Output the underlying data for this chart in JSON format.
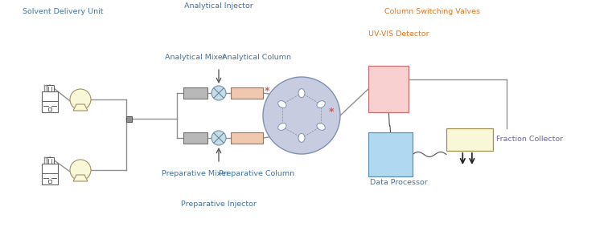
{
  "bg_color": "#ffffff",
  "tc_blue": "#4472a0",
  "tc_orange": "#e07828",
  "tc_purple": "#7060b0",
  "lc": "#909090",
  "lw": 1.0,
  "yellow_fill": "#f8f8d8",
  "pink_fill": "#f8d0d0",
  "blue_fill": "#b0d8f0",
  "gray_fill": "#b8b8b8",
  "peach_fill": "#f0c8b0",
  "valve_fill": "#c8cce0",
  "mixer_fill": "#c8dce8",
  "labels": {
    "solvent": "Solvent Delivery Unit",
    "an_inj": "Analytical Injector",
    "an_mix": "Analytical Mixer",
    "an_col": "Analytical Column",
    "col_sw": "Column Switching Valves",
    "uv": "UV-VIS Detector",
    "pr_mix": "Preparative Mixer",
    "pr_inj": "Preparative Injector",
    "pr_col": "Preparative Column",
    "dp": "Data Processor",
    "fc": "Fraction Collector"
  }
}
